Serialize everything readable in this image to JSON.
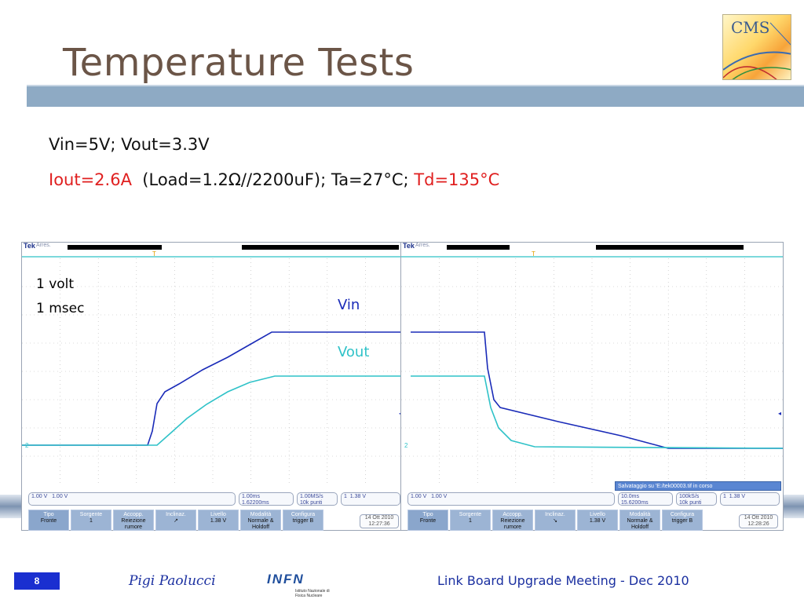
{
  "slide": {
    "title": "Temperature Tests",
    "line1": "Vin=5V; Vout=3.3V",
    "line2_a": "Iout=2.6A",
    "line2_b": "  (Load=1.2Ω//2200uF); Ta=27°C; ",
    "line2_c": "Td=135°C",
    "annot_volt": "1 volt",
    "annot_msec": "1 msec",
    "label_vin": "Vin",
    "label_vout": "Vout",
    "logo_text": "CMS",
    "page_number": "8",
    "author": "Pigi Paolucci",
    "infn_logo": "INFN",
    "infn_sub": "Istituto Nazionale di Fisica Nucleare",
    "meeting": "Link Board Upgrade Meeting - Dec 2010"
  },
  "colors": {
    "vin_trace": "#1a2bb8",
    "vout_trace": "#2fc2c8",
    "title": "#6b5547",
    "title_bar": "#8eaac4",
    "red_text": "#e02020"
  },
  "scopes": [
    {
      "brand": "Tek",
      "status": "Arres.",
      "ch1": "1.00 V",
      "ch2": "1.00 V",
      "timebase": "1.00ms",
      "trig_pos": "1.62200ms",
      "rate": "1.00MS/s",
      "points": "10k punti",
      "trig_ch": "1",
      "trig_level": "1.38 V",
      "buttons": [
        {
          "top": "Tipo",
          "bottom": "Fronte"
        },
        {
          "top": "Sorgente",
          "bottom": "1"
        },
        {
          "top": "Accopp.",
          "bottom": "Reiezione rumore"
        },
        {
          "top": "Inclinaz.",
          "bottom": "↗"
        },
        {
          "top": "Livello",
          "bottom": "1.38 V"
        },
        {
          "top": "Modalità",
          "bottom": "Normale & Holdoff"
        },
        {
          "top": "Configura",
          "bottom": "trigger B"
        }
      ],
      "date": "14 Ott 2010",
      "time": "12:27:36"
    },
    {
      "brand": "Tek",
      "status": "Arres.",
      "ch1": "1.00 V",
      "ch2": "1.00 V",
      "timebase": "10.0ms",
      "trig_pos": "15.6200ms",
      "rate": "100kS/s",
      "points": "10k punti",
      "trig_ch": "1",
      "trig_level": "1.38 V",
      "save_msg": "Salvataggio su 'E:/tek00003.tif in corso",
      "buttons": [
        {
          "top": "Tipo",
          "bottom": "Fronte"
        },
        {
          "top": "Sorgente",
          "bottom": "1"
        },
        {
          "top": "Accopp.",
          "bottom": "Reiezione rumore"
        },
        {
          "top": "Inclinaz.",
          "bottom": "↘"
        },
        {
          "top": "Livello",
          "bottom": "1.38 V"
        },
        {
          "top": "Modalità",
          "bottom": "Normale & Holdoff"
        },
        {
          "top": "Configura",
          "bottom": "trigger B"
        }
      ],
      "date": "14 Ott 2010",
      "time": "12:28:26"
    }
  ]
}
